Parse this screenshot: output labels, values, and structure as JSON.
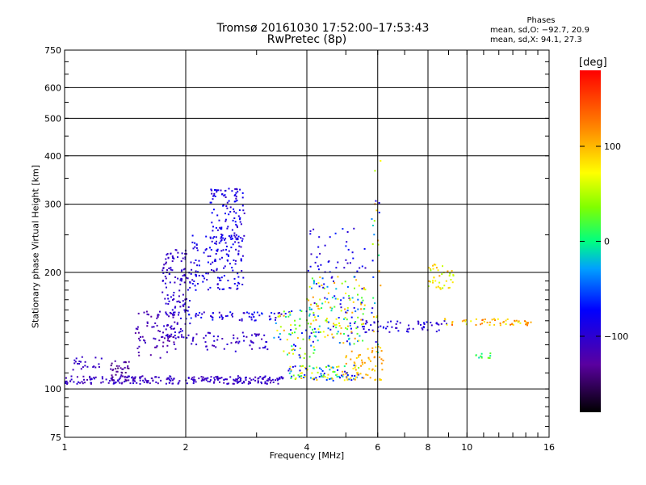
{
  "title": "Tromsø 20161030 17:52:00–17:53:43",
  "subtitle": "RwPretec (8p)",
  "phases": {
    "label": "Phases",
    "o_line": "mean, sd,O: −92.7, 20.9",
    "x_line": "mean, sd,X:  94.1, 27.3"
  },
  "colorbar": {
    "unit": "[deg]",
    "ticks": [
      {
        "value": 100,
        "label": "100"
      },
      {
        "value": 0,
        "label": "0"
      },
      {
        "value": -100,
        "label": "−100"
      }
    ],
    "range": [
      -180,
      180
    ]
  },
  "chart_data": {
    "type": "scatter",
    "xlabel": "Frequency [MHz]",
    "ylabel": "Stationary phase Virtual Height [km]",
    "x_scale": "log",
    "y_scale": "log",
    "xlim": [
      1,
      16
    ],
    "ylim": [
      75,
      750
    ],
    "x_ticks": [
      {
        "value": 1,
        "label": "1"
      },
      {
        "value": 2,
        "label": "2"
      },
      {
        "value": 4,
        "label": "4"
      },
      {
        "value": 6,
        "label": "6"
      },
      {
        "value": 8,
        "label": "8"
      },
      {
        "value": 10,
        "label": "10"
      },
      {
        "value": 16,
        "label": "16"
      }
    ],
    "y_ticks": [
      {
        "value": 75,
        "label": "75"
      },
      {
        "value": 100,
        "label": "100"
      },
      {
        "value": 200,
        "label": "200"
      },
      {
        "value": 300,
        "label": "300"
      },
      {
        "value": 400,
        "label": "400"
      },
      {
        "value": 500,
        "label": "500"
      },
      {
        "value": 600,
        "label": "600"
      },
      {
        "value": 750,
        "label": "750"
      }
    ],
    "grid": true,
    "clusters": [
      {
        "f0": 1.0,
        "f1": 3.5,
        "h0": 103,
        "h1": 108,
        "c0": -120,
        "c1": -95,
        "n": 260
      },
      {
        "f0": 1.05,
        "f1": 1.25,
        "h0": 112,
        "h1": 122,
        "c0": -115,
        "c1": -100,
        "n": 22
      },
      {
        "f0": 1.3,
        "f1": 1.45,
        "h0": 105,
        "h1": 118,
        "c0": -145,
        "c1": -115,
        "n": 35
      },
      {
        "f0": 1.5,
        "f1": 1.9,
        "h0": 120,
        "h1": 160,
        "c0": -130,
        "c1": -105,
        "n": 70
      },
      {
        "f0": 1.75,
        "f1": 2.05,
        "h0": 135,
        "h1": 230,
        "c0": -115,
        "c1": -90,
        "n": 150
      },
      {
        "f0": 2.05,
        "f1": 2.8,
        "h0": 180,
        "h1": 250,
        "c0": -105,
        "c1": -70,
        "n": 140
      },
      {
        "f0": 2.3,
        "f1": 2.8,
        "h0": 240,
        "h1": 330,
        "c0": -110,
        "c1": -70,
        "n": 110
      },
      {
        "f0": 2.0,
        "f1": 3.2,
        "h0": 125,
        "h1": 140,
        "c0": -120,
        "c1": -90,
        "n": 60
      },
      {
        "f0": 2.0,
        "f1": 3.5,
        "h0": 150,
        "h1": 158,
        "c0": -115,
        "c1": -60,
        "n": 60
      },
      {
        "f0": 3.3,
        "f1": 4.2,
        "h0": 120,
        "h1": 160,
        "c0": -80,
        "c1": 110,
        "n": 70
      },
      {
        "f0": 3.6,
        "f1": 5.5,
        "h0": 105,
        "h1": 115,
        "c0": -100,
        "c1": 110,
        "n": 110
      },
      {
        "f0": 4.0,
        "f1": 5.6,
        "h0": 130,
        "h1": 195,
        "c0": -110,
        "c1": 120,
        "n": 180
      },
      {
        "f0": 4.0,
        "f1": 5.6,
        "h0": 200,
        "h1": 260,
        "c0": -110,
        "c1": -60,
        "n": 40
      },
      {
        "f0": 5.0,
        "f1": 6.2,
        "h0": 105,
        "h1": 130,
        "c0": 80,
        "c1": 120,
        "n": 60
      },
      {
        "f0": 5.8,
        "f1": 6.1,
        "h0": 120,
        "h1": 420,
        "c0": -120,
        "c1": 120,
        "n": 30
      },
      {
        "f0": 5.5,
        "f1": 9.0,
        "h0": 140,
        "h1": 150,
        "c0": -110,
        "c1": -80,
        "n": 60
      },
      {
        "f0": 8.0,
        "f1": 9.3,
        "h0": 180,
        "h1": 210,
        "c0": 40,
        "c1": 120,
        "n": 40
      },
      {
        "f0": 8.8,
        "f1": 14.5,
        "h0": 146,
        "h1": 152,
        "c0": 60,
        "c1": 140,
        "n": 55
      },
      {
        "f0": 10.5,
        "f1": 11.5,
        "h0": 120,
        "h1": 125,
        "c0": -20,
        "c1": 40,
        "n": 12
      }
    ]
  }
}
